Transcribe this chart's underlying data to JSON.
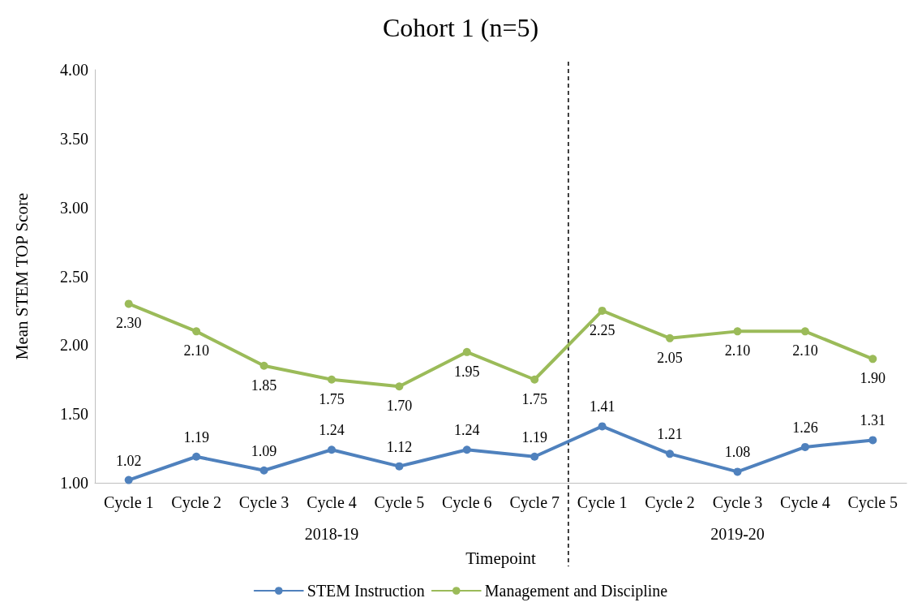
{
  "chart_data": {
    "type": "line",
    "title": "Cohort 1 (n=5)",
    "xlabel": "Timepoint",
    "ylabel": "Mean STEM TOP Score",
    "categories": [
      "Cycle 1",
      "Cycle 2",
      "Cycle 3",
      "Cycle 4",
      "Cycle 5",
      "Cycle 6",
      "Cycle 7",
      "Cycle 1",
      "Cycle 2",
      "Cycle 3",
      "Cycle 4",
      "Cycle 5"
    ],
    "series": [
      {
        "name": "STEM Instruction",
        "color": "#4f81bd",
        "values": [
          1.02,
          1.19,
          1.09,
          1.24,
          1.12,
          1.24,
          1.19,
          1.41,
          1.21,
          1.08,
          1.26,
          1.31
        ],
        "value_labels": [
          "1.02",
          "1.19",
          "1.09",
          "1.24",
          "1.12",
          "1.24",
          "1.19",
          "1.41",
          "1.21",
          "1.08",
          "1.26",
          "1.31"
        ]
      },
      {
        "name": "Management and Discipline",
        "color": "#9bbb59",
        "values": [
          2.3,
          2.1,
          1.85,
          1.75,
          1.7,
          1.95,
          1.75,
          2.25,
          2.05,
          2.1,
          2.1,
          1.9
        ],
        "value_labels": [
          "2.30",
          "2.10",
          "1.85",
          "1.75",
          "1.70",
          "1.95",
          "1.75",
          "2.25",
          "2.05",
          "2.10",
          "2.10",
          "1.90"
        ]
      }
    ],
    "ylim": [
      1,
      4
    ],
    "yticks": [
      {
        "value": 1,
        "label": "1.00"
      },
      {
        "value": 1.5,
        "label": "1.50"
      },
      {
        "value": 2,
        "label": "2.00"
      },
      {
        "value": 2.5,
        "label": "2.50"
      },
      {
        "value": 3,
        "label": "3.00"
      },
      {
        "value": 3.5,
        "label": "3.50"
      },
      {
        "value": 4,
        "label": "4.00"
      }
    ],
    "annotations": [
      "2018-19",
      "2019-20"
    ],
    "grid": false,
    "legend": "bottom",
    "marker": "circle",
    "line_style": "solid"
  }
}
